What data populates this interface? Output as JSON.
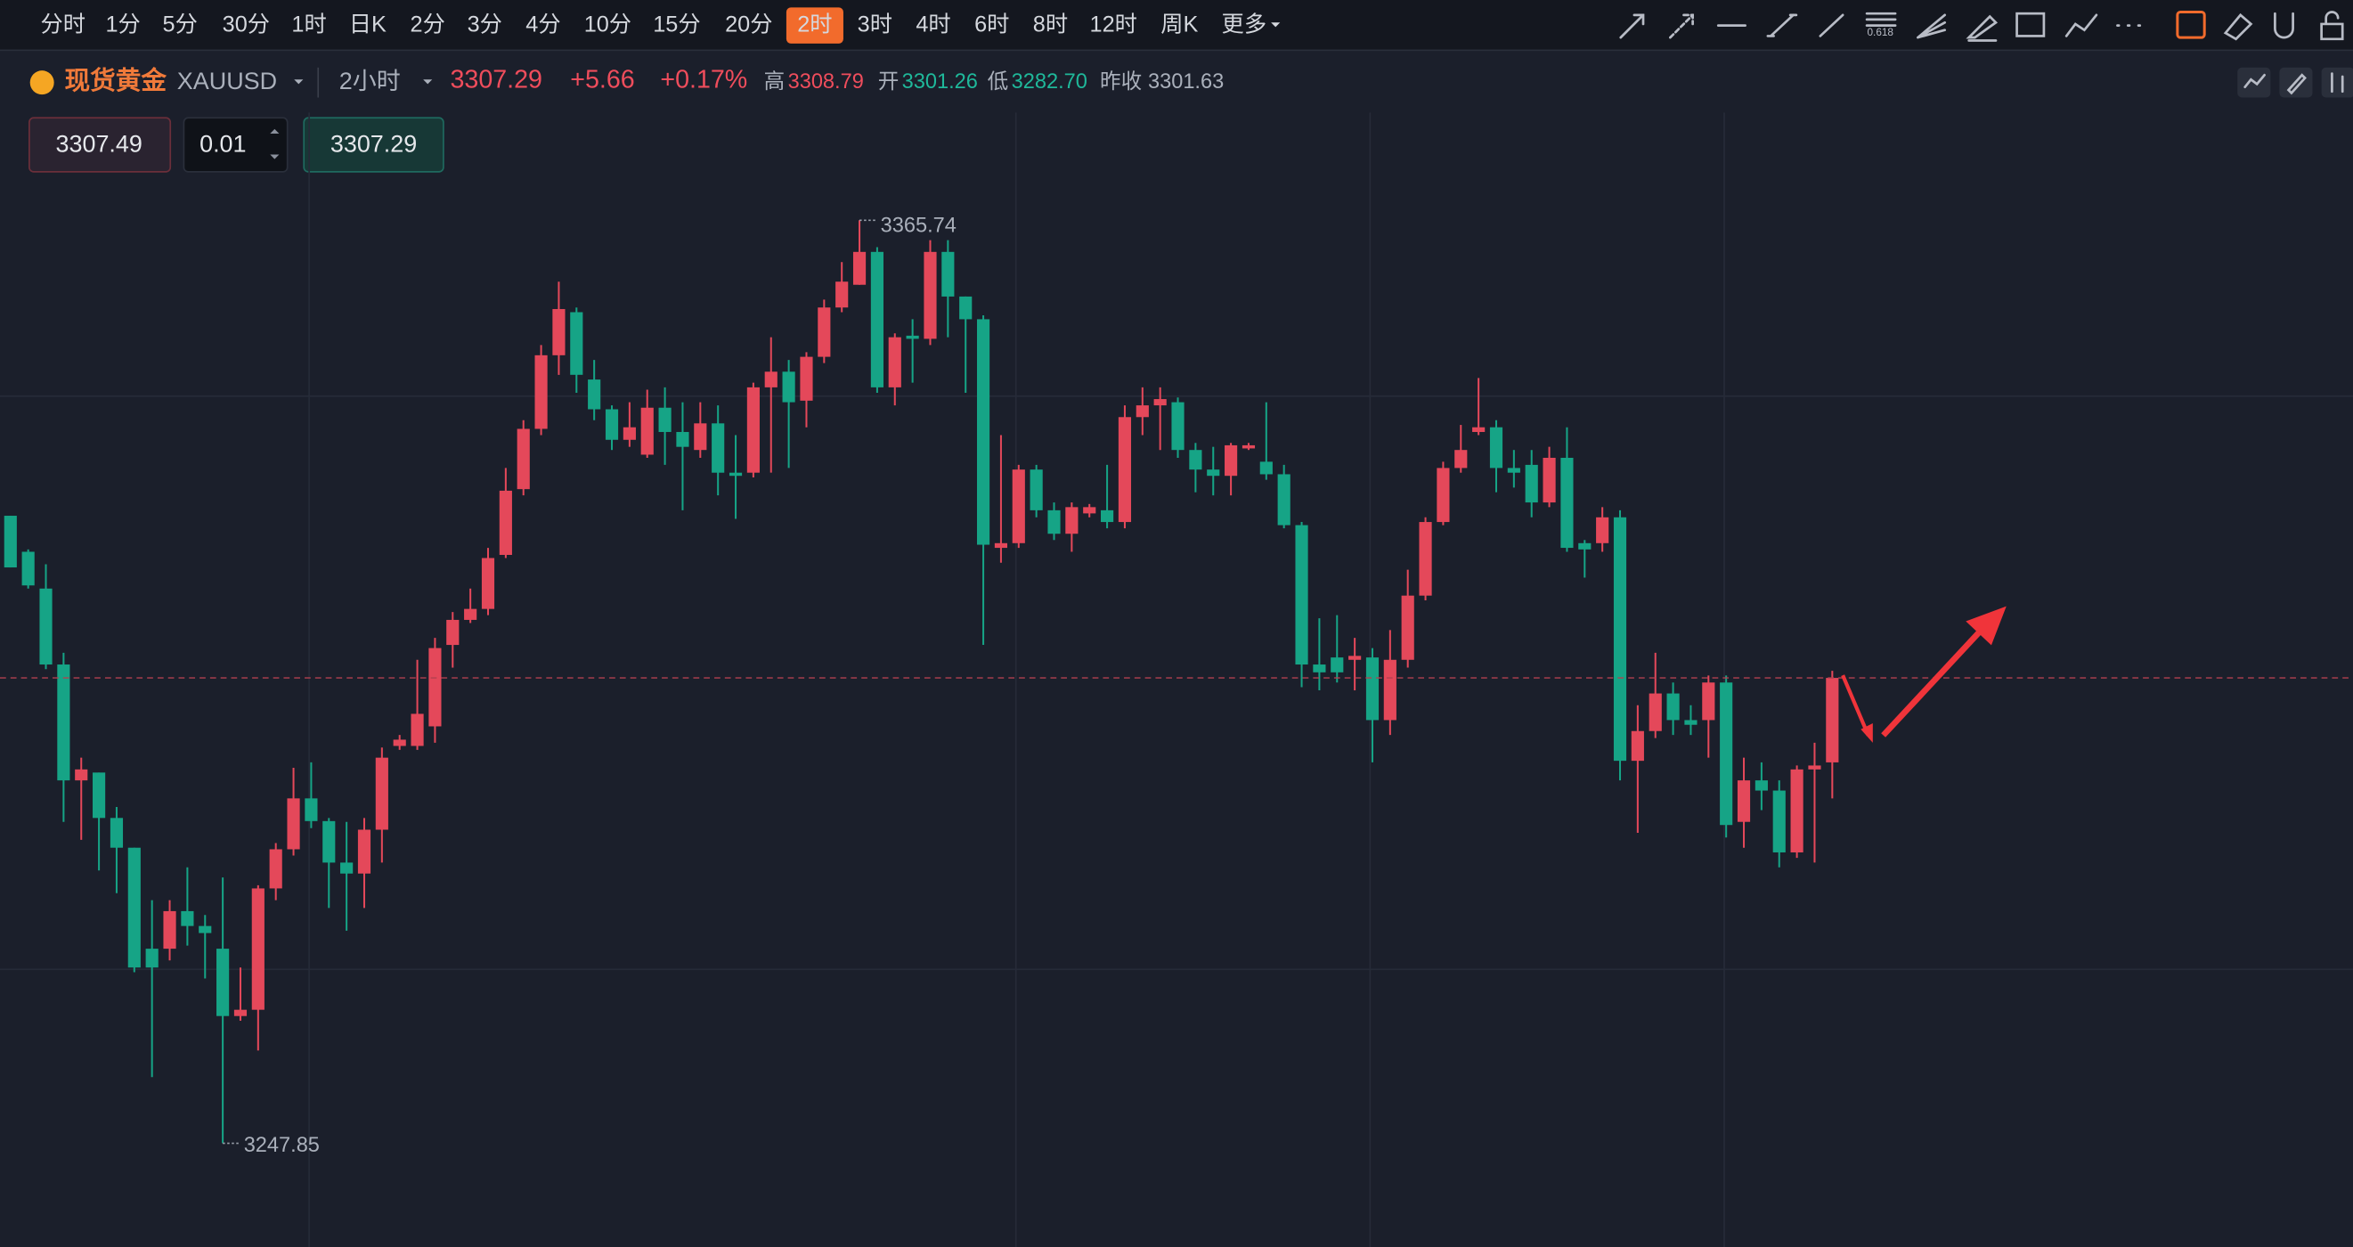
{
  "toolbar": {
    "timeframes": [
      "分时",
      "1分",
      "5分",
      "30分",
      "1时",
      "日K",
      "2分",
      "3分",
      "4分",
      "10分",
      "15分",
      "20分",
      "2时",
      "3时",
      "4时",
      "6时",
      "8时",
      "12时",
      "周K",
      "更多"
    ],
    "active": 12
  },
  "symbol": {
    "name": "现货黄金",
    "code": "XAUUSD",
    "period": "2小时"
  },
  "quote": {
    "price": "3307.29",
    "change": "+5.66",
    "change_pct": "+0.17%",
    "high_label": "高",
    "high": "3308.79",
    "open_label": "开",
    "open": "3301.26",
    "low_label": "低",
    "low": "3282.70",
    "prev_label": "昨收",
    "prev": "3301.63"
  },
  "order": {
    "sell": "3307.49",
    "lots": "0.01",
    "buy": "3307.29"
  },
  "chart_data": {
    "type": "candlestick",
    "up_color": "#e4485a",
    "down_color": "#16a486",
    "ylim": [
      3234.6,
      3379.5
    ],
    "last_price": 3307.29,
    "max_label": "3365.74",
    "min_label": "3247.85",
    "open": [
      3328.0,
      3323.4,
      3318.7,
      3309.0,
      3294.2,
      3295.2,
      3289.4,
      3285.6,
      3272.7,
      3272.7,
      3277.5,
      3275.6,
      3272.7,
      3264.1,
      3264.9,
      3280.4,
      3285.4,
      3291.9,
      3289.0,
      3283.7,
      3282.3,
      3287.9,
      3298.6,
      3298.6,
      3301.1,
      3311.5,
      3314.7,
      3316.1,
      3323.0,
      3331.4,
      3339.1,
      3348.5,
      3354.0,
      3345.4,
      3341.6,
      3337.7,
      3335.8,
      3341.8,
      3338.7,
      3336.4,
      3339.8,
      3333.5,
      3333.5,
      3344.4,
      3346.4,
      3342.7,
      3348.3,
      3354.6,
      3357.5,
      3361.7,
      3344.4,
      3351.0,
      3350.6,
      3361.7,
      3356.0,
      3353.1,
      3323.9,
      3324.5,
      3333.9,
      3328.7,
      3325.7,
      3328.3,
      3328.7,
      3327.2,
      3340.6,
      3342.1,
      3342.5,
      3336.4,
      3333.9,
      3333.1,
      3336.6,
      3334.9,
      3333.3,
      3326.8,
      3309.0,
      3309.9,
      3309.6,
      3309.9,
      3301.9,
      3309.6,
      3317.8,
      3327.2,
      3334.1,
      3338.7,
      3339.3,
      3334.1,
      3334.5,
      3329.7,
      3335.4,
      3324.5,
      3324.5,
      3327.8,
      3296.7,
      3300.5,
      3305.3,
      3301.9,
      3301.9,
      3306.7,
      3288.9,
      3294.2,
      3292.9,
      3285.0,
      3295.6,
      3296.5
    ],
    "high": [
      3328.0,
      3323.7,
      3321.8,
      3310.5,
      3297.1,
      3295.2,
      3290.8,
      3285.6,
      3278.9,
      3278.9,
      3283.1,
      3277.0,
      3281.8,
      3270.3,
      3280.8,
      3286.2,
      3295.8,
      3296.5,
      3289.4,
      3288.9,
      3289.4,
      3298.4,
      3300.0,
      3309.6,
      3312.4,
      3315.7,
      3318.7,
      3323.9,
      3334.1,
      3340.2,
      3349.8,
      3357.9,
      3354.6,
      3347.9,
      3342.1,
      3342.5,
      3344.1,
      3344.4,
      3342.5,
      3342.5,
      3342.1,
      3338.3,
      3345.0,
      3350.8,
      3347.9,
      3348.9,
      3355.6,
      3360.4,
      3365.74,
      3362.3,
      3351.3,
      3353.1,
      3363.2,
      3363.2,
      3356.0,
      3353.6,
      3338.3,
      3334.5,
      3334.5,
      3329.7,
      3329.7,
      3329.5,
      3334.5,
      3342.1,
      3344.4,
      3344.4,
      3343.1,
      3337.3,
      3336.8,
      3337.3,
      3337.3,
      3342.5,
      3334.5,
      3327.2,
      3314.9,
      3315.3,
      3312.4,
      3311.1,
      3313.4,
      3321.1,
      3327.8,
      3334.9,
      3339.6,
      3345.6,
      3340.2,
      3336.4,
      3336.4,
      3336.8,
      3339.3,
      3324.9,
      3329.1,
      3328.7,
      3303.8,
      3310.5,
      3306.7,
      3303.8,
      3307.6,
      3307.6,
      3297.1,
      3296.5,
      3294.2,
      3296.1,
      3299.0,
      3308.2
    ],
    "low": [
      3321.4,
      3318.7,
      3308.4,
      3288.9,
      3286.6,
      3282.7,
      3279.8,
      3269.7,
      3256.3,
      3271.2,
      3273.1,
      3268.9,
      3247.85,
      3263.5,
      3259.7,
      3278.9,
      3284.6,
      3288.1,
      3277.9,
      3275.0,
      3277.9,
      3283.7,
      3298.1,
      3298.1,
      3299.0,
      3308.6,
      3314.3,
      3315.3,
      3322.6,
      3330.6,
      3338.3,
      3346.0,
      3343.7,
      3340.2,
      3336.4,
      3336.8,
      3335.4,
      3334.5,
      3328.7,
      3335.4,
      3330.6,
      3327.6,
      3332.9,
      3333.5,
      3334.1,
      3339.3,
      3347.5,
      3354.0,
      3357.5,
      3343.7,
      3342.1,
      3345.0,
      3349.8,
      3350.8,
      3343.7,
      3311.5,
      3322.0,
      3323.9,
      3327.8,
      3324.9,
      3323.4,
      3327.8,
      3326.4,
      3326.4,
      3338.3,
      3336.4,
      3335.4,
      3331.0,
      3330.6,
      3330.6,
      3336.4,
      3332.6,
      3326.4,
      3306.1,
      3305.7,
      3306.7,
      3305.7,
      3296.5,
      3300.0,
      3308.6,
      3317.2,
      3326.8,
      3333.5,
      3338.3,
      3331.0,
      3331.6,
      3327.8,
      3329.1,
      3323.4,
      3320.1,
      3323.4,
      3294.2,
      3287.5,
      3299.6,
      3300.0,
      3300.0,
      3297.1,
      3286.9,
      3285.6,
      3290.4,
      3283.1,
      3284.3,
      3283.7,
      3291.9
    ],
    "close": [
      3321.4,
      3319.1,
      3309.0,
      3294.2,
      3295.6,
      3289.4,
      3285.6,
      3270.3,
      3270.3,
      3277.5,
      3275.6,
      3274.7,
      3264.1,
      3264.9,
      3280.4,
      3285.4,
      3291.9,
      3289.0,
      3283.7,
      3282.3,
      3287.9,
      3297.1,
      3299.4,
      3302.7,
      3311.1,
      3314.7,
      3316.1,
      3322.6,
      3331.2,
      3339.1,
      3348.5,
      3354.4,
      3346.0,
      3341.6,
      3337.7,
      3339.3,
      3341.8,
      3338.7,
      3336.8,
      3339.8,
      3333.5,
      3333.1,
      3344.4,
      3346.4,
      3342.5,
      3348.3,
      3354.6,
      3357.9,
      3361.7,
      3344.4,
      3350.8,
      3350.6,
      3361.7,
      3356.0,
      3353.1,
      3324.3,
      3324.5,
      3333.9,
      3328.7,
      3325.7,
      3329.1,
      3329.1,
      3327.2,
      3340.6,
      3342.1,
      3342.9,
      3336.4,
      3333.9,
      3333.1,
      3337.0,
      3337.0,
      3333.3,
      3326.8,
      3309.0,
      3308.0,
      3308.0,
      3310.1,
      3301.9,
      3309.6,
      3317.8,
      3327.2,
      3334.1,
      3336.4,
      3339.3,
      3334.1,
      3333.5,
      3329.7,
      3335.4,
      3323.9,
      3323.7,
      3327.8,
      3296.7,
      3300.5,
      3305.3,
      3301.9,
      3301.3,
      3306.7,
      3288.5,
      3294.2,
      3292.9,
      3285.0,
      3295.6,
      3296.1,
      3307.29
    ]
  }
}
